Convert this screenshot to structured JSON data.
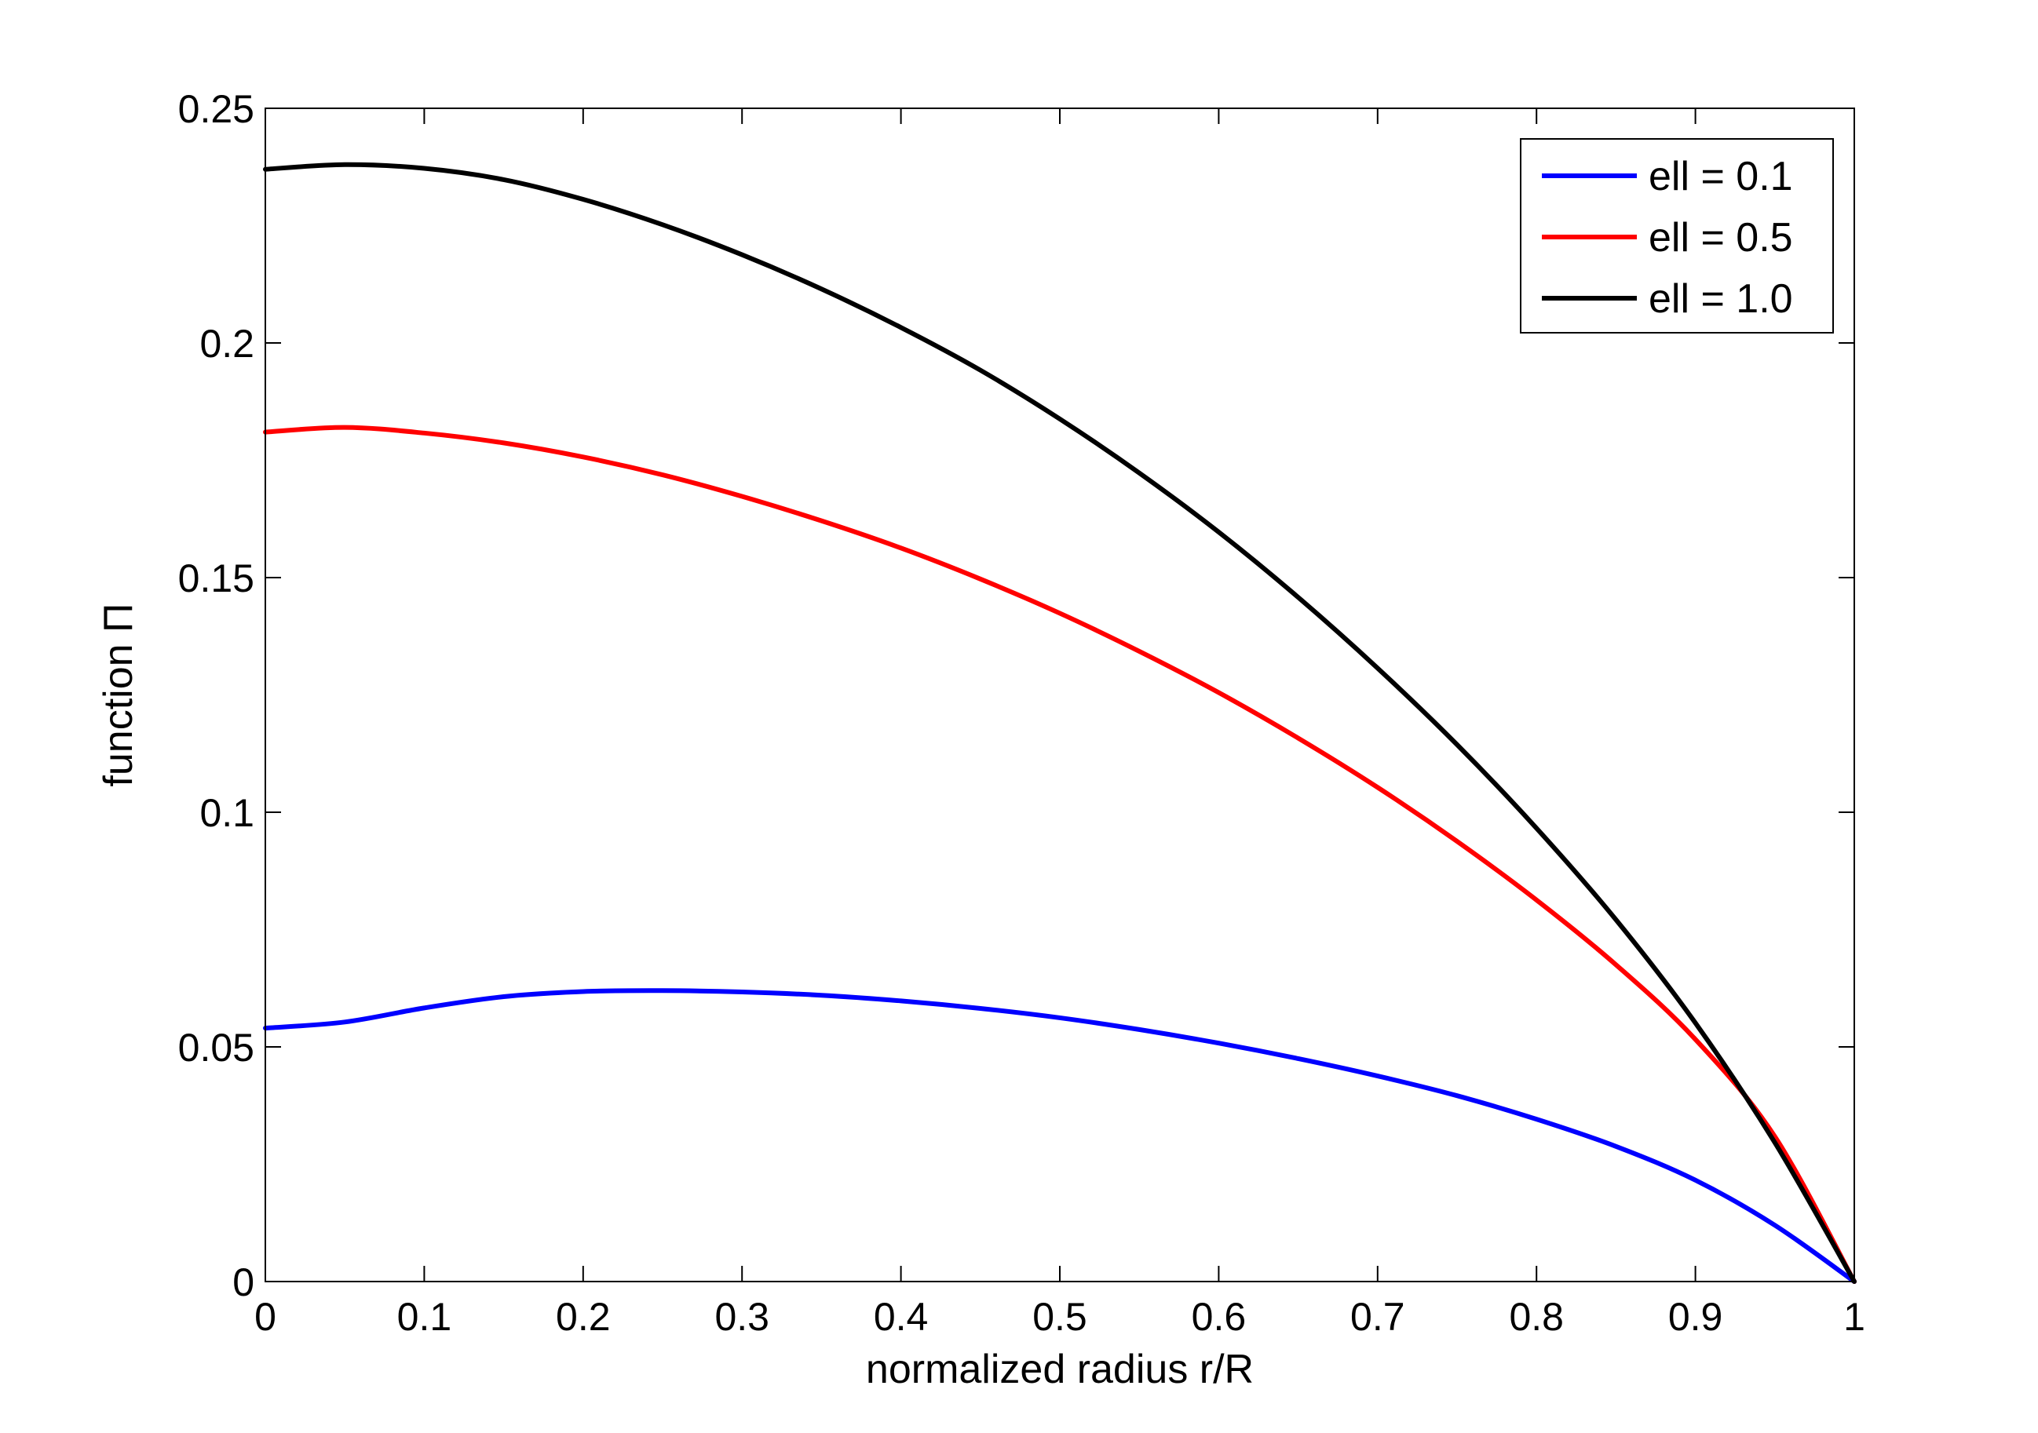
{
  "chart_data": {
    "type": "line",
    "title": "",
    "xlabel": "normalized radius r/R",
    "ylabel": "function Π",
    "xlim": [
      0,
      1
    ],
    "ylim": [
      0,
      0.25
    ],
    "x_ticks": [
      0,
      0.1,
      0.2,
      0.3,
      0.4,
      0.5,
      0.6,
      0.7,
      0.8,
      0.9,
      1
    ],
    "x_tick_labels": [
      "0",
      "0.1",
      "0.2",
      "0.3",
      "0.4",
      "0.5",
      "0.6",
      "0.7",
      "0.8",
      "0.9",
      "1"
    ],
    "y_ticks": [
      0,
      0.05,
      0.1,
      0.15,
      0.2,
      0.25
    ],
    "y_tick_labels": [
      "0",
      "0.05",
      "0.1",
      "0.15",
      "0.2",
      "0.25"
    ],
    "grid": false,
    "legend_position": "top-right",
    "x": [
      0,
      0.05,
      0.1,
      0.15,
      0.2,
      0.25,
      0.3,
      0.35,
      0.4,
      0.45,
      0.5,
      0.55,
      0.6,
      0.65,
      0.7,
      0.75,
      0.8,
      0.85,
      0.9,
      0.95,
      1.0
    ],
    "series": [
      {
        "name": "ell = 0.1",
        "color": "#0000ff",
        "values": [
          0.054,
          0.0553,
          0.0583,
          0.0607,
          0.0618,
          0.062,
          0.0617,
          0.061,
          0.0598,
          0.0582,
          0.0562,
          0.0537,
          0.0508,
          0.0475,
          0.0438,
          0.0396,
          0.0346,
          0.0288,
          0.0216,
          0.012,
          0.0
        ]
      },
      {
        "name": "ell = 0.5",
        "color": "#ff0000",
        "values": [
          0.181,
          0.182,
          0.1808,
          0.1787,
          0.1757,
          0.1719,
          0.1673,
          0.1621,
          0.1563,
          0.1497,
          0.1424,
          0.1343,
          0.1255,
          0.1158,
          0.1053,
          0.0938,
          0.0813,
          0.0675,
          0.0516,
          0.0309,
          0.0
        ]
      },
      {
        "name": "ell = 1.0",
        "color": "#000000",
        "values": [
          0.237,
          0.238,
          0.2372,
          0.2348,
          0.2306,
          0.2252,
          0.2188,
          0.2115,
          0.2033,
          0.1942,
          0.1838,
          0.1723,
          0.1597,
          0.1458,
          0.1307,
          0.1144,
          0.0966,
          0.0771,
          0.0551,
          0.0296,
          0.0
        ]
      }
    ]
  }
}
